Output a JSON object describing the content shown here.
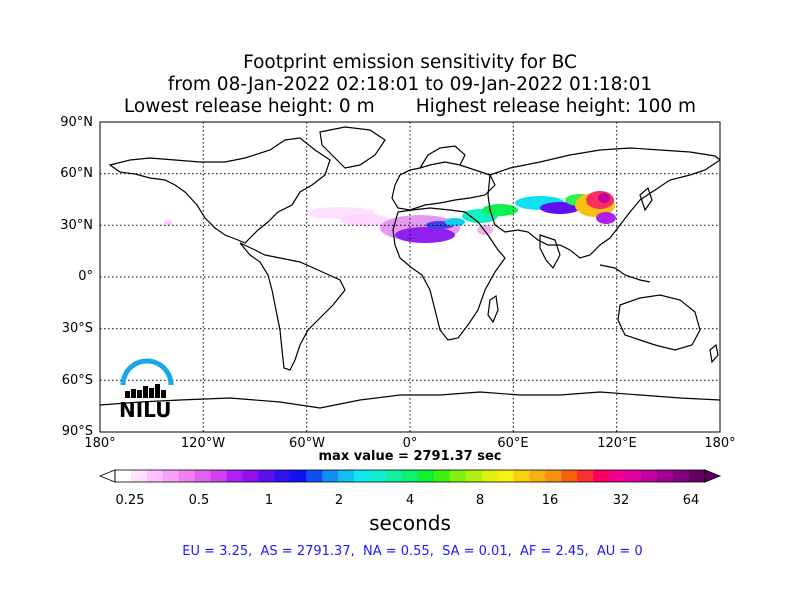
{
  "title": {
    "line1": "Footprint emission sensitivity for BC",
    "line2": "from 08-Jan-2022 02:18:01 to 09-Jan-2022 01:18:01",
    "line3_left": "Lowest release height: 0 m",
    "line3_right": "Highest release height: 100 m"
  },
  "map": {
    "lat_labels": [
      "90°N",
      "60°N",
      "30°N",
      "0°",
      "30°S",
      "60°S",
      "90°S"
    ],
    "lon_labels": [
      "180°",
      "120°W",
      "60°W",
      "0°",
      "60°E",
      "120°E",
      "180°"
    ],
    "gridlines": true,
    "logo_text": "NILU",
    "max_value_label": "max value = 2791.37 sec"
  },
  "colorbar": {
    "tick_labels": [
      "0.25",
      "0.5",
      "1",
      "2",
      "4",
      "8",
      "16",
      "32",
      "64"
    ],
    "units": "seconds",
    "colors": [
      "#ffffff",
      "#ffe0ff",
      "#ffc0ff",
      "#f8a0f8",
      "#f080f0",
      "#e060f0",
      "#d040f0",
      "#b020f0",
      "#9010f0",
      "#6010f0",
      "#3010f0",
      "#1010f0",
      "#1050f0",
      "#1090f0",
      "#10c0f0",
      "#10e8f0",
      "#10f0d0",
      "#10f0a0",
      "#10f070",
      "#10f030",
      "#40f010",
      "#80f010",
      "#b0f010",
      "#e0f010",
      "#f8f010",
      "#f8d010",
      "#f8b010",
      "#f89010",
      "#f86010",
      "#f83030",
      "#f80060",
      "#f00090",
      "#e000a0",
      "#c000a0",
      "#a00090",
      "#800080",
      "#600060"
    ]
  },
  "stats": "EU = 3.25,  AS = 2791.37,  NA = 0.55,  SA = 0.01,  AF = 2.45,  AU = 0",
  "colors": {
    "stats_text": "#1a1aff",
    "logo_blue": "#1aa7e8"
  }
}
